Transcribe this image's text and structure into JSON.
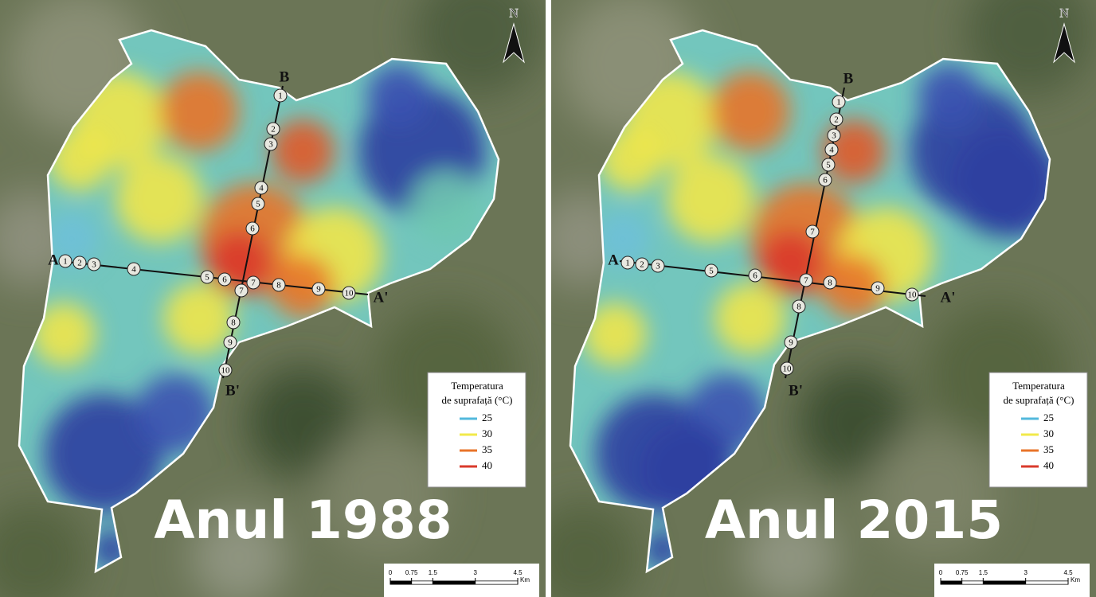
{
  "panels": [
    {
      "title": "Anul 1988",
      "north": "N",
      "profile_a": {
        "start": "A",
        "end": "A'",
        "points": [
          1,
          2,
          3,
          4,
          5,
          6,
          7,
          8,
          9,
          10
        ]
      },
      "profile_b": {
        "start": "B",
        "end": "B'",
        "points": [
          1,
          2,
          3,
          4,
          5,
          6,
          7,
          8,
          9,
          10
        ]
      },
      "legend": {
        "title_line1": "Temperatura",
        "title_line2": "de suprafață (°C)",
        "items": [
          {
            "label": 25,
            "color": "#52b8dc"
          },
          {
            "label": 30,
            "color": "#f2e94a"
          },
          {
            "label": 35,
            "color": "#e8742a"
          },
          {
            "label": 40,
            "color": "#d93a2b"
          }
        ]
      },
      "scale": {
        "ticks": [
          0,
          0.75,
          1.5,
          3,
          4.5
        ],
        "unit": "Km"
      }
    },
    {
      "title": "Anul 2015",
      "north": "N",
      "profile_a": {
        "start": "A",
        "end": "A'",
        "points": [
          1,
          2,
          3,
          5,
          6,
          7,
          8,
          9,
          10
        ]
      },
      "profile_b": {
        "start": "B",
        "end": "B'",
        "points": [
          1,
          2,
          3,
          4,
          5,
          6,
          7,
          8,
          9,
          10
        ]
      },
      "legend": {
        "title_line1": "Temperatura",
        "title_line2": "de suprafață (°C)",
        "items": [
          {
            "label": 25,
            "color": "#52b8dc"
          },
          {
            "label": 30,
            "color": "#f2e94a"
          },
          {
            "label": 35,
            "color": "#e8742a"
          },
          {
            "label": 40,
            "color": "#d93a2b"
          }
        ]
      },
      "scale": {
        "ticks": [
          0,
          0.75,
          1.5,
          3,
          4.5
        ],
        "unit": "Km"
      }
    }
  ]
}
